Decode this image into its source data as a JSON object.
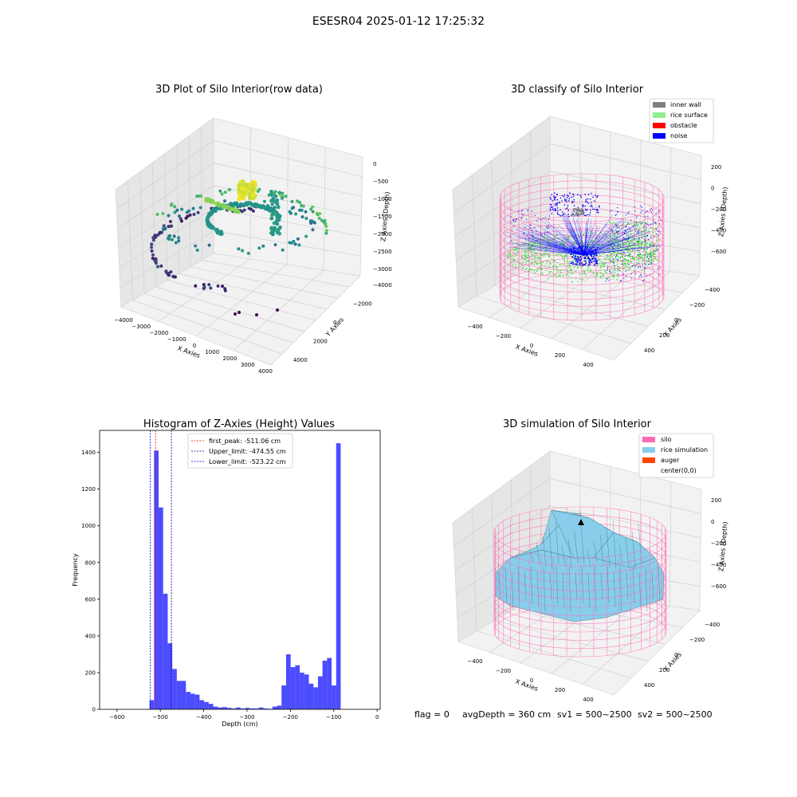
{
  "suptitle": "ESESR04 2025-01-12 17:25:32",
  "footer": {
    "flag": "flag = 0",
    "avg_depth": "avgDepth = 360 cm",
    "sv1": "sv1 = 500~2500",
    "sv2": "sv2 = 500~2500"
  },
  "chart_data": [
    {
      "type": "scatter",
      "title": "3D Plot of Silo Interior(row data)",
      "xlabel": "X Axies",
      "ylabel": "Y Axies",
      "zlabel": "Z Axies (Depth)",
      "x_ticks": [
        "−4000",
        "−3000",
        "−2000",
        "−1000",
        "0",
        "1000",
        "2000",
        "3000",
        "4000"
      ],
      "y_ticks": [
        "−4000",
        "−2000",
        "0",
        "2000",
        "4000"
      ],
      "z_ticks": [
        "0",
        "−500",
        "−1000",
        "−1500",
        "−2000",
        "−2500",
        "−3000"
      ],
      "colormap": "viridis"
    },
    {
      "type": "scatter",
      "title": "3D classify of Silo Interior",
      "xlabel": "X Axies",
      "ylabel": "Y Axies",
      "zlabel": "Z Axies (Depth)",
      "x_ticks": [
        "−400",
        "−200",
        "0",
        "200",
        "400"
      ],
      "y_ticks": [
        "−400",
        "−200",
        "0",
        "200",
        "400"
      ],
      "z_ticks": [
        "200",
        "0",
        "−200",
        "−400",
        "−600"
      ],
      "legend": [
        {
          "label": "inner wall",
          "color": "#808080"
        },
        {
          "label": "rice surface",
          "color": "#90ee90"
        },
        {
          "label": "obstacle",
          "color": "#ff0000"
        },
        {
          "label": "noise",
          "color": "#0000ff"
        }
      ],
      "legend_position": "top-right"
    },
    {
      "type": "bar",
      "title": "Histogram of Z-Axies (Height) Values",
      "xlabel": "Depth (cm)",
      "ylabel": "Frequency",
      "xlim": [
        -640,
        7
      ],
      "ylim": [
        0,
        1520
      ],
      "x_ticks": [
        -600,
        -500,
        -400,
        -300,
        -200,
        -100,
        0
      ],
      "y_ticks": [
        0,
        200,
        400,
        600,
        800,
        1000,
        1200,
        1400
      ],
      "x_tick_labels": [
        "−600",
        "−500",
        "−400",
        "−300",
        "−200",
        "−100",
        "0"
      ],
      "bin_width": 10.5,
      "bin_start": -525,
      "values": [
        50,
        1410,
        1100,
        630,
        360,
        220,
        155,
        155,
        95,
        85,
        80,
        50,
        40,
        30,
        15,
        10,
        12,
        8,
        5,
        10,
        5,
        8,
        5,
        5,
        10,
        5,
        3,
        15,
        20,
        130,
        300,
        230,
        240,
        200,
        190,
        140,
        120,
        180,
        265,
        280,
        130,
        1450
      ],
      "bar_color": "#0000ff",
      "vlines": [
        {
          "label": "first_peak: -511.06 cm",
          "x": -511.06,
          "color": "#ff0000"
        },
        {
          "label": "Upper_limit: -474.55 cm",
          "x": -474.55,
          "color": "#00008b"
        },
        {
          "label": "Lower_limit: -523.22 cm",
          "x": -523.22,
          "color": "#0000ff"
        }
      ],
      "legend_position": "top-center"
    },
    {
      "type": "surface",
      "title": "3D simulation of Silo Interior",
      "xlabel": "X Axies",
      "ylabel": "Y Axies",
      "zlabel": "Z Axies (Depth)",
      "x_ticks": [
        "−400",
        "−200",
        "0",
        "200",
        "400"
      ],
      "y_ticks": [
        "−400",
        "−200",
        "0",
        "200",
        "400"
      ],
      "z_ticks": [
        "200",
        "0",
        "−200",
        "−400",
        "−600"
      ],
      "legend": [
        {
          "label": "silo",
          "color": "#ff69b4"
        },
        {
          "label": "rice simulation",
          "color": "#87ceeb"
        },
        {
          "label": "auger",
          "color": "#ff4500"
        },
        {
          "label": "center(0,0)",
          "color": "#ffffff"
        }
      ],
      "legend_position": "top-right"
    }
  ]
}
